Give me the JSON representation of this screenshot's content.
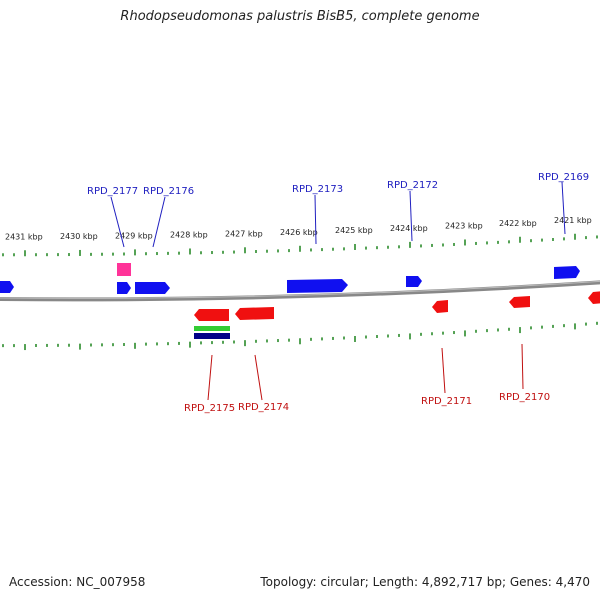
{
  "title": "Rhodopseudomonas palustris BisB5, complete genome",
  "footer": {
    "accession": "Accession: NC_007958",
    "summary": "Topology: circular; Length: 4,892,717 bp; Genes: 4,470"
  },
  "colors": {
    "forward_gene": "#1010f0",
    "reverse_gene": "#f01010",
    "forward_label": "#2020c0",
    "reverse_label": "#c01010",
    "tick": "#2a8a2a",
    "backbone": "#888888",
    "pink_feature": "#ff3399",
    "green_feature": "#33cc33",
    "navy_feature": "#000088"
  },
  "ruler": {
    "labels": [
      "2431 kbp",
      "2430 kbp",
      "2429 kbp",
      "2428 kbp",
      "2427 kbp",
      "2426 kbp",
      "2425 kbp",
      "2424 kbp",
      "2423 kbp",
      "2422 kbp",
      "2421 kbp"
    ]
  },
  "genes": {
    "forward": [
      "RPD_2177",
      "RPD_2176",
      "RPD_2173",
      "RPD_2172",
      "RPD_2169"
    ],
    "reverse": [
      "RPD_2175",
      "RPD_2174",
      "RPD_2171",
      "RPD_2170"
    ]
  }
}
